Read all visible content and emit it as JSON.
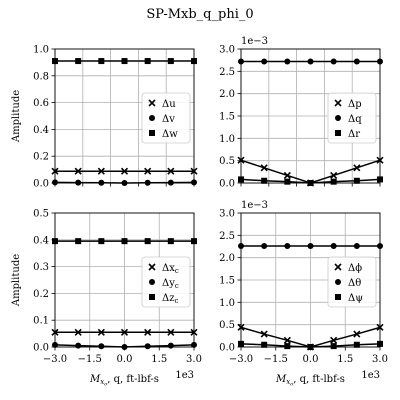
{
  "figure_title": "SP-Mxb_q_phi_0",
  "colors": {
    "line": "#000000",
    "grid": "#b0b0b0",
    "background": "#ffffff"
  },
  "chart_data": [
    {
      "type": "line",
      "ylabel": "Amplitude",
      "xlabel": "",
      "x": [
        -3000,
        -2000,
        -1000,
        0,
        1000,
        2000,
        3000
      ],
      "xlim": [
        -3000,
        3000
      ],
      "xticks": [
        "",
        "",
        "",
        "",
        "",
        ""
      ],
      "x_offset_label": "",
      "ylim": [
        0,
        1.0
      ],
      "yticks": [
        "0.0",
        "0.2",
        "0.4",
        "0.6",
        "0.8",
        "1.0"
      ],
      "y_offset_label": "",
      "grid": true,
      "legend": "center-right",
      "series": [
        {
          "name": "Δu",
          "marker": "x",
          "values": [
            0.088,
            0.088,
            0.088,
            0.088,
            0.088,
            0.088,
            0.088
          ]
        },
        {
          "name": "Δv",
          "marker": "o",
          "values": [
            0.005,
            0.003,
            0.002,
            0.0,
            0.002,
            0.003,
            0.005
          ]
        },
        {
          "name": "Δw",
          "marker": "s",
          "values": [
            0.91,
            0.91,
            0.91,
            0.91,
            0.91,
            0.91,
            0.91
          ]
        }
      ]
    },
    {
      "type": "line",
      "ylabel": "",
      "xlabel": "",
      "x": [
        -3000,
        -2000,
        -1000,
        0,
        1000,
        2000,
        3000
      ],
      "xlim": [
        -3000,
        3000
      ],
      "xticks": [
        "",
        "",
        "",
        "",
        "",
        ""
      ],
      "x_offset_label": "",
      "ylim": [
        0,
        0.003
      ],
      "yticks": [
        "0.0",
        "0.5",
        "1.0",
        "1.5",
        "2.0",
        "2.5",
        "3.0"
      ],
      "y_offset_label": "1e−3",
      "grid": true,
      "legend": "center-right",
      "series": [
        {
          "name": "Δp",
          "marker": "x",
          "values": [
            0.00051,
            0.00034,
            0.00017,
            0.0,
            0.00017,
            0.00034,
            0.00051
          ]
        },
        {
          "name": "Δq",
          "marker": "o",
          "values": [
            0.00272,
            0.00272,
            0.00272,
            0.00272,
            0.00272,
            0.00272,
            0.00272
          ]
        },
        {
          "name": "Δr",
          "marker": "s",
          "values": [
            8e-05,
            5e-05,
            3e-05,
            0.0,
            3e-05,
            5e-05,
            8e-05
          ]
        }
      ]
    },
    {
      "type": "line",
      "ylabel": "Amplitude",
      "xlabel": "M_{x_o}, q, ft-lbf-s",
      "x": [
        -3000,
        -2000,
        -1000,
        0,
        1000,
        2000,
        3000
      ],
      "xlim": [
        -3000,
        3000
      ],
      "xticks": [
        "−3.0",
        "−1.5",
        "0.0",
        "1.5",
        "3.0"
      ],
      "x_offset_label": "1e3",
      "ylim": [
        0,
        0.5
      ],
      "yticks": [
        "0.0",
        "0.1",
        "0.2",
        "0.3",
        "0.4",
        "0.5"
      ],
      "y_offset_label": "",
      "grid": true,
      "legend": "center-right",
      "series": [
        {
          "name": "Δx_c",
          "marker": "x",
          "values": [
            0.055,
            0.055,
            0.055,
            0.055,
            0.055,
            0.055,
            0.055
          ]
        },
        {
          "name": "Δy_c",
          "marker": "o",
          "values": [
            0.008,
            0.005,
            0.003,
            0.0,
            0.003,
            0.005,
            0.008
          ]
        },
        {
          "name": "Δz_c",
          "marker": "s",
          "values": [
            0.395,
            0.395,
            0.395,
            0.395,
            0.395,
            0.395,
            0.395
          ]
        }
      ]
    },
    {
      "type": "line",
      "ylabel": "",
      "xlabel": "M_{x_o}, q, ft-lbf-s",
      "x": [
        -3000,
        -2000,
        -1000,
        0,
        1000,
        2000,
        3000
      ],
      "xlim": [
        -3000,
        3000
      ],
      "xticks": [
        "−3.0",
        "−1.5",
        "0.0",
        "1.5",
        "3.0"
      ],
      "x_offset_label": "1e3",
      "ylim": [
        0,
        0.003
      ],
      "yticks": [
        "0.0",
        "0.5",
        "1.0",
        "1.5",
        "2.0",
        "2.5",
        "3.0"
      ],
      "y_offset_label": "1e−3",
      "grid": true,
      "legend": "center-right",
      "series": [
        {
          "name": "Δϕ",
          "marker": "x",
          "values": [
            0.00044,
            0.00029,
            0.00015,
            0.0,
            0.00015,
            0.00029,
            0.00044
          ]
        },
        {
          "name": "Δθ",
          "marker": "o",
          "values": [
            0.00226,
            0.00226,
            0.00226,
            0.00226,
            0.00226,
            0.00226,
            0.00226
          ]
        },
        {
          "name": "Δψ",
          "marker": "s",
          "values": [
            7e-05,
            5e-05,
            2e-05,
            0.0,
            2e-05,
            5e-05,
            7e-05
          ]
        }
      ]
    }
  ]
}
